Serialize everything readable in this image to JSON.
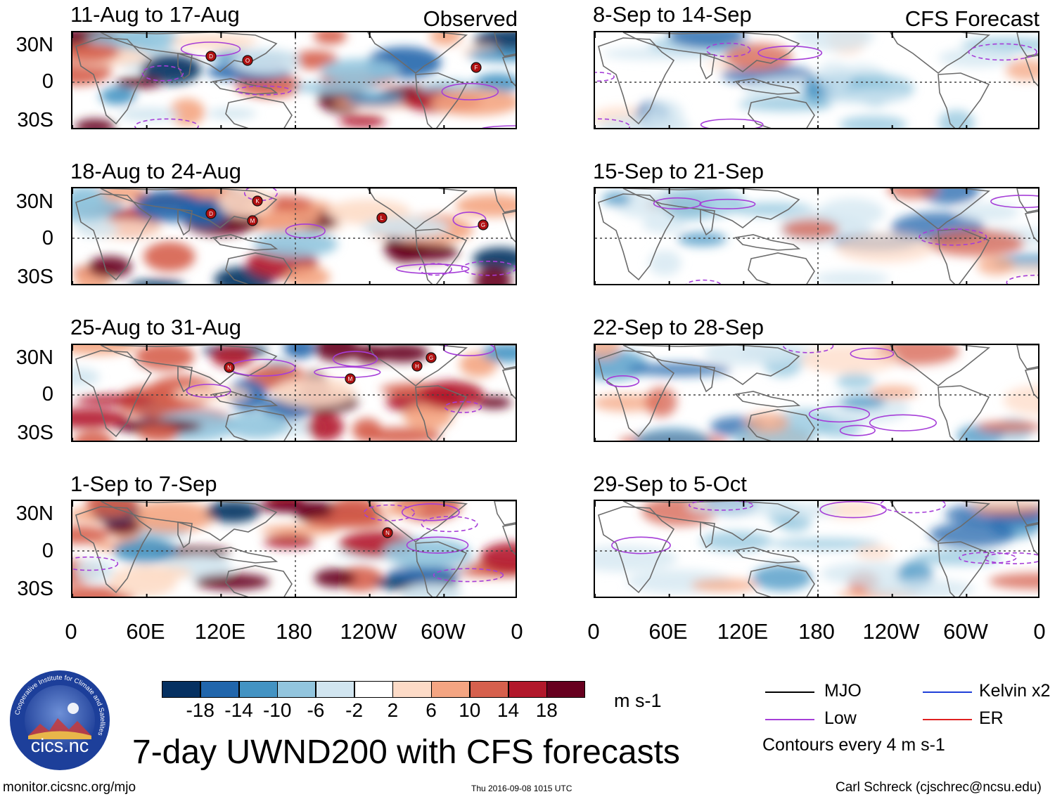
{
  "header": {
    "observed_label": "Observed",
    "forecast_label": "CFS Forecast"
  },
  "observed_panels": [
    {
      "title": "11-Aug to 17-Aug",
      "storms": [
        "D",
        "O",
        "F"
      ]
    },
    {
      "title": "18-Aug to 24-Aug",
      "storms": [
        "D",
        "K",
        "M",
        "L",
        "G"
      ]
    },
    {
      "title": "25-Aug to 31-Aug",
      "storms": [
        "N",
        "M",
        "H",
        "G"
      ]
    },
    {
      "title": "1-Sep to 7-Sep",
      "storms": [
        "N"
      ]
    }
  ],
  "forecast_panels": [
    {
      "title": "8-Sep to 14-Sep"
    },
    {
      "title": "15-Sep to 21-Sep"
    },
    {
      "title": "22-Sep to 28-Sep"
    },
    {
      "title": "29-Sep to 5-Oct"
    }
  ],
  "y_axis_labels": [
    "30N",
    "0",
    "30S"
  ],
  "x_axis_labels": [
    "0",
    "60E",
    "120E",
    "180",
    "120W",
    "60W",
    "0"
  ],
  "colorbar": {
    "tick_labels": [
      "-18",
      "-14",
      "-10",
      "-6",
      "-2",
      "2",
      "6",
      "10",
      "14",
      "18"
    ],
    "colors": [
      "#053061",
      "#2166ac",
      "#4393c3",
      "#92c5de",
      "#d1e5f0",
      "#ffffff",
      "#fddbc7",
      "#f4a582",
      "#d6604d",
      "#b2182b",
      "#67001f"
    ],
    "units": "m s-1"
  },
  "legend": {
    "items": [
      {
        "label": "MJO",
        "color": "#000000"
      },
      {
        "label": "Kelvin x2",
        "color": "#1f3fd8"
      },
      {
        "label": "Low",
        "color": "#a63ed8"
      },
      {
        "label": "ER",
        "color": "#e02020"
      }
    ],
    "note": "Contours every 4 m s-1"
  },
  "logo": {
    "text": "cics.nc",
    "ring_text": "Cooperative Institute for Climate and Satellites"
  },
  "main_title": "7-day UWND200 with CFS forecasts",
  "footer": {
    "url": "monitor.cicsnc.org/mjo",
    "timestamp": "Thu 2016-09-08 1015 UTC",
    "credit": "Carl Schreck (cjschrec@ncsu.edu)"
  }
}
